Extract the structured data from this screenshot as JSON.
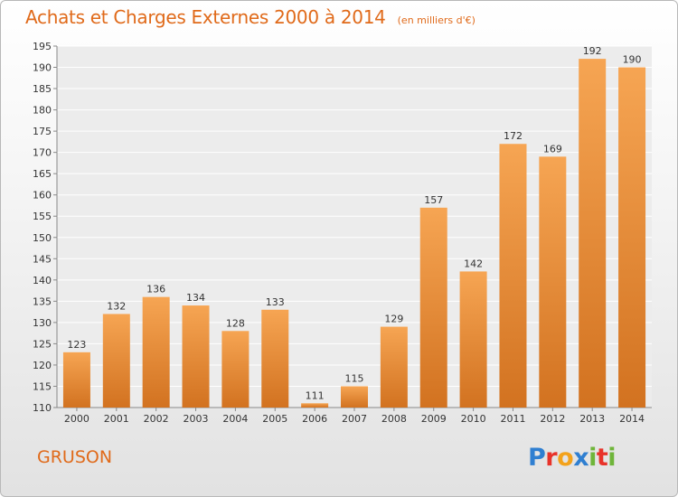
{
  "header": {
    "title": "Achats et Charges Externes 2000 à 2014",
    "subtitle": "(en milliers d'€)"
  },
  "footer": {
    "commune": "GRUSON",
    "brand": "Proxiti",
    "brand_letters": [
      {
        "ch": "P",
        "color": "#2f7fd1"
      },
      {
        "ch": "r",
        "color": "#e8332a"
      },
      {
        "ch": "o",
        "color": "#f3a21b"
      },
      {
        "ch": "x",
        "color": "#2f7fd1"
      },
      {
        "ch": "i",
        "color": "#6fb53a"
      },
      {
        "ch": "t",
        "color": "#e8332a"
      },
      {
        "ch": "i",
        "color": "#6fb53a"
      }
    ]
  },
  "colors": {
    "accent": "#e06a1a",
    "bar_top": "#f6a553",
    "bar_bottom": "#d27220"
  },
  "chart_data": {
    "type": "bar",
    "title": "Achats et Charges Externes 2000 à 2014",
    "subtitle": "(en milliers d'€)",
    "categories": [
      "2000",
      "2001",
      "2002",
      "2003",
      "2004",
      "2005",
      "2006",
      "2007",
      "2008",
      "2009",
      "2010",
      "2011",
      "2012",
      "2013",
      "2014"
    ],
    "values": [
      123,
      132,
      136,
      134,
      128,
      133,
      111,
      115,
      129,
      157,
      142,
      172,
      169,
      192,
      190
    ],
    "ylim": [
      110,
      195
    ],
    "yticks": [
      110,
      115,
      120,
      125,
      130,
      135,
      140,
      145,
      150,
      155,
      160,
      165,
      170,
      175,
      180,
      185,
      190,
      195
    ],
    "grid": true,
    "data_labels": true
  }
}
